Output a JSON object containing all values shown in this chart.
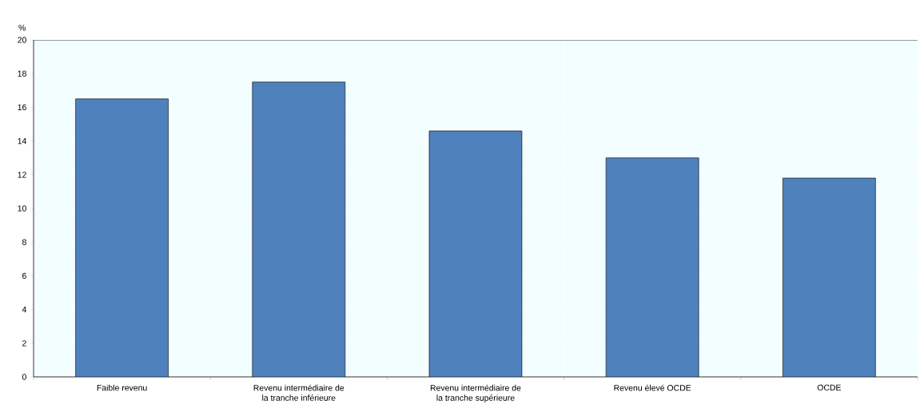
{
  "chart_data": {
    "type": "bar",
    "ylabel": "%",
    "categories": [
      "Faible revenu",
      "Revenu intermédiaire de la tranche inférieure",
      "Revenu intermédiaire de la tranche supérieure",
      "Revenu élevé OCDE",
      "OCDE"
    ],
    "values": [
      16.5,
      17.5,
      14.6,
      13.0,
      11.8
    ],
    "color": "#4f81bd",
    "ylim": [
      0,
      20
    ],
    "yticks": [
      0,
      2,
      4,
      6,
      8,
      10,
      12,
      14,
      16,
      18,
      20
    ],
    "grid": true
  }
}
